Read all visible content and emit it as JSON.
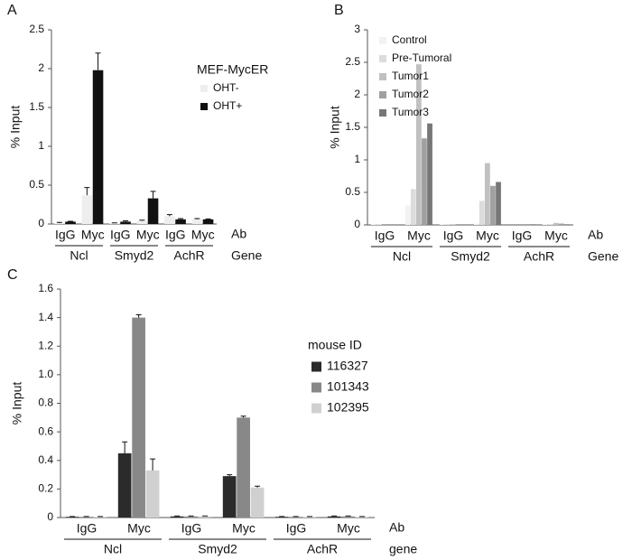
{
  "chart_data": [
    {
      "type": "bar",
      "label": "A",
      "ylabel": "% Input",
      "legend_title": "MEF-MycER",
      "categories": [
        "IgG",
        "Myc",
        "IgG",
        "Myc",
        "IgG",
        "Myc"
      ],
      "groups": [
        "Ncl",
        "Smyd2",
        "AchR"
      ],
      "row_labels": [
        "Ab",
        "Gene"
      ],
      "series": [
        {
          "name": "OHT-",
          "color": "#eeeeee",
          "values": [
            0.01,
            0.37,
            0.01,
            0.04,
            0.1,
            0.06
          ],
          "errors": [
            0.01,
            0.1,
            0.005,
            0.01,
            0.02,
            0.01
          ]
        },
        {
          "name": "OHT+",
          "color": "#111111",
          "values": [
            0.03,
            1.98,
            0.03,
            0.33,
            0.06,
            0.06
          ],
          "errors": [
            0.005,
            0.22,
            0.01,
            0.09,
            0.01,
            0.005
          ]
        }
      ],
      "ylim": [
        0,
        2.5
      ],
      "yticks": [
        0,
        0.5,
        1,
        1.5,
        2,
        2.5
      ]
    },
    {
      "type": "bar",
      "label": "B",
      "ylabel": "% Input",
      "categories": [
        "IgG",
        "Myc",
        "IgG",
        "Myc",
        "IgG",
        "Myc"
      ],
      "groups": [
        "Ncl",
        "Smyd2",
        "AchR"
      ],
      "row_labels": [
        "Ab",
        "Gene"
      ],
      "series": [
        {
          "name": "Control",
          "color": "#f2f2f2",
          "values": [
            0.01,
            0.3,
            0.01,
            0.02,
            0,
            0.01
          ]
        },
        {
          "name": "Pre-Tumoral",
          "color": "#dcdcdc",
          "values": [
            0.01,
            0.55,
            0.01,
            0.37,
            0,
            0.01
          ]
        },
        {
          "name": "Tumor1",
          "color": "#c0c0c0",
          "values": [
            0,
            2.47,
            0.01,
            0.95,
            0,
            0.03
          ]
        },
        {
          "name": "Tumor2",
          "color": "#a0a0a0",
          "values": [
            0,
            1.33,
            0,
            0.6,
            0,
            0.02
          ]
        },
        {
          "name": "Tumor3",
          "color": "#777777",
          "values": [
            0,
            1.56,
            0,
            0.66,
            0.01,
            0.01
          ]
        }
      ],
      "ylim": [
        0,
        3
      ],
      "yticks": [
        0,
        0.5,
        1,
        1.5,
        2,
        2.5,
        3
      ]
    },
    {
      "type": "bar",
      "label": "C",
      "ylabel": "% Input",
      "legend_title": "mouse ID",
      "categories": [
        "IgG",
        "Myc",
        "IgG",
        "Myc",
        "IgG",
        "Myc"
      ],
      "groups": [
        "Ncl",
        "Smyd2",
        "AchR"
      ],
      "row_labels": [
        "Ab",
        "gene"
      ],
      "series": [
        {
          "name": "116327",
          "color": "#2b2b2b",
          "values": [
            0.005,
            0.45,
            0.008,
            0.29,
            0.005,
            0.008
          ],
          "errors": [
            0.002,
            0.08,
            0.003,
            0.01,
            0.002,
            0.003
          ]
        },
        {
          "name": "101343",
          "color": "#888888",
          "values": [
            0.005,
            1.4,
            0.008,
            0.7,
            0.005,
            0.008
          ],
          "errors": [
            0.002,
            0.02,
            0.003,
            0.01,
            0.002,
            0.003
          ]
        },
        {
          "name": "102395",
          "color": "#d0d0d0",
          "values": [
            0.005,
            0.33,
            0.008,
            0.21,
            0.005,
            0.005
          ],
          "errors": [
            0.002,
            0.08,
            0.003,
            0.01,
            0.002,
            0.002
          ]
        }
      ],
      "ylim": [
        0,
        1.6
      ],
      "yticks": [
        0,
        0.2,
        0.4,
        0.6,
        0.8,
        {
          "value": 1,
          "label": "1.0"
        },
        1.2,
        1.4,
        1.6
      ]
    }
  ]
}
